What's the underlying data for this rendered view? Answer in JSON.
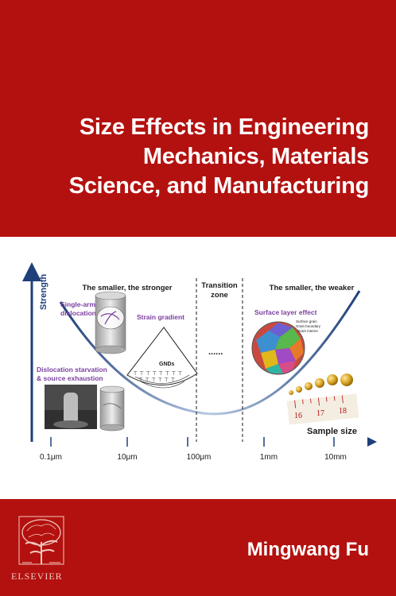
{
  "cover": {
    "title_lines": [
      "Size Effects in Engineering",
      "Mechanics, Materials",
      "Science, and Manufacturing"
    ],
    "author": "Mingwang Fu",
    "publisher": "ELSEVIER"
  },
  "figure": {
    "y_axis_label": "Strength",
    "x_axis_label": "Sample size",
    "regions": {
      "left": "The smaller, the stronger",
      "middle_line1": "Transition",
      "middle_line2": "zone",
      "right": "The smaller, the weaker"
    },
    "annotations": {
      "single_arm_line1": "Single-arm",
      "single_arm_line2": "dislocation",
      "strain_gradient": "Strain gradient",
      "starvation_line1": "Dislocation starvation",
      "starvation_line2": "& source exhaustion",
      "surface_layer": "Surface layer effect",
      "gnds": "GNDs",
      "dots": "......",
      "grain_label_1": "Surface grain",
      "grain_label_2": "Grain boundary",
      "grain_label_3": "Grain interior",
      "ruler_1": "16",
      "ruler_2": "17",
      "ruler_3": "18"
    },
    "x_ticks": [
      "0.1μm",
      "10μm",
      "100μm",
      "1mm",
      "10mm"
    ],
    "colors": {
      "axis": "#1f3f7a",
      "curve": "#2a4d8f",
      "purple_label": "#7b3fa0",
      "cover_red": "#b3110f"
    }
  }
}
